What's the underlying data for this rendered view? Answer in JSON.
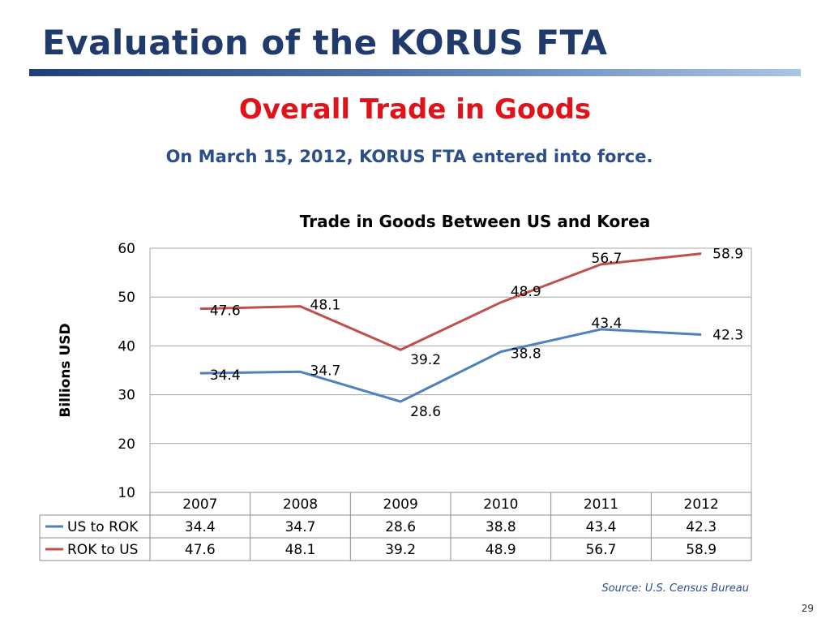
{
  "slide": {
    "title": "Evaluation of the KORUS FTA",
    "subtitle": "Overall Trade in Goods",
    "note": "On March 15, 2012, KORUS FTA entered into force.",
    "source": "Source: U.S. Census Bureau",
    "page_number": "29"
  },
  "chart_data": {
    "type": "line",
    "title": "Trade in Goods Between US and Korea",
    "xlabel": "",
    "ylabel": "Billions USD",
    "ylim": [
      10,
      60
    ],
    "yticks": [
      10,
      20,
      30,
      40,
      50,
      60
    ],
    "grid": true,
    "legend": "data-table-left",
    "categories": [
      "2007",
      "2008",
      "2009",
      "2010",
      "2011",
      "2012"
    ],
    "series": [
      {
        "name": "US to ROK",
        "values": [
          34.4,
          34.7,
          28.6,
          38.8,
          43.4,
          42.3
        ],
        "color": "#4f81bd"
      },
      {
        "name": "ROK to US",
        "values": [
          47.6,
          48.1,
          39.2,
          48.9,
          56.7,
          58.9
        ],
        "color": "#c0504d"
      }
    ],
    "data_labels": true,
    "data_table": true
  }
}
